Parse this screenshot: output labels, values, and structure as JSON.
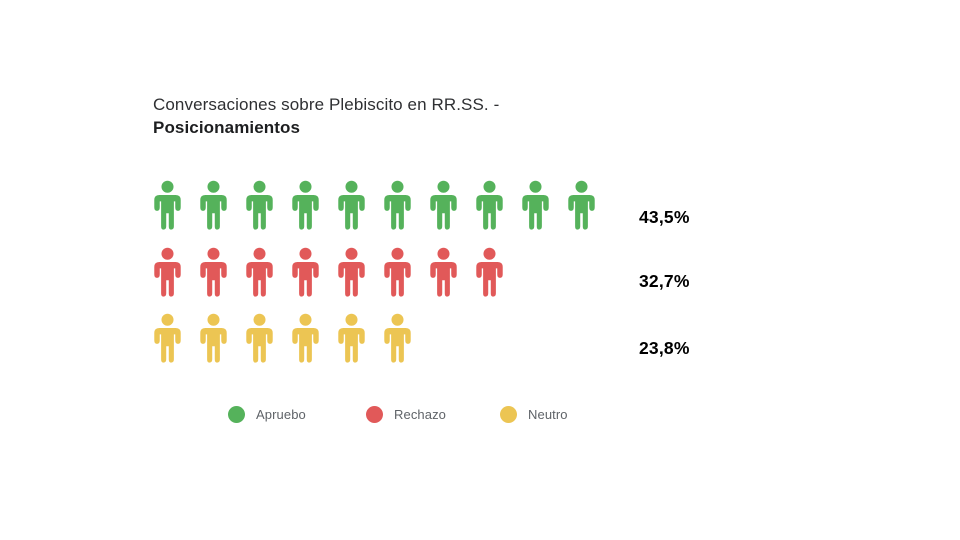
{
  "title": {
    "line1": "Conversaciones sobre Plebiscito en RR.SS. -",
    "line2": "Posicionamientos"
  },
  "chart_data": {
    "type": "bar",
    "variant": "pictogram",
    "unit_icon": "person-icon",
    "title": "Conversaciones sobre Plebiscito en RR.SS. - Posicionamientos",
    "categories": [
      "Apruebo",
      "Rechazo",
      "Neutro"
    ],
    "series": [
      {
        "name": "Apruebo",
        "value_pct": 43.5,
        "label": "43,5%",
        "icon_count": 10,
        "color": "#55b25b"
      },
      {
        "name": "Rechazo",
        "value_pct": 32.7,
        "label": "32,7%",
        "icon_count": 8,
        "color": "#e15959"
      },
      {
        "name": "Neutro",
        "value_pct": 23.8,
        "label": "23,8%",
        "icon_count": 6,
        "color": "#ecc553"
      }
    ],
    "legend_position": "bottom",
    "grid": false,
    "background": "#ffffff",
    "text_colors": {
      "title": "#2f3033",
      "percent": "#000000",
      "legend": "#5f6368"
    }
  }
}
